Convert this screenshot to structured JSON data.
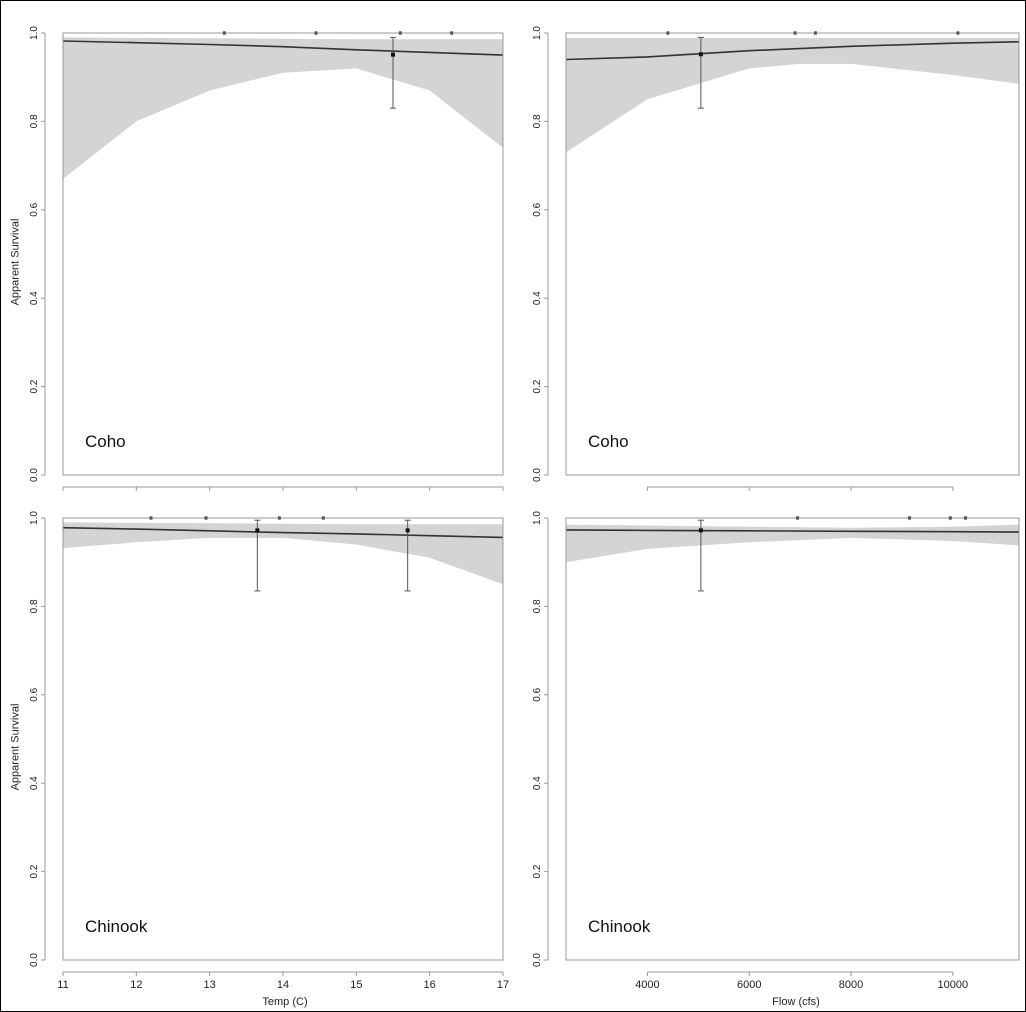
{
  "figure": {
    "ylabel_top": "Apparent Survival",
    "ylabel_bottom": "Apparent Survival",
    "xlabel_temp": "Temp (C)",
    "xlabel_flow": "Flow (cfs)"
  },
  "colors": {
    "band": "#d4d4d4",
    "line": "#333333",
    "axis": "#999999",
    "text": "#222222"
  },
  "chart_data": [
    {
      "id": "coho-temp",
      "type": "line",
      "species_label": "Coho",
      "xlim": [
        11,
        17
      ],
      "ylim": [
        0,
        1
      ],
      "xticks": [
        11,
        12,
        13,
        14,
        15,
        16,
        17
      ],
      "show_xtick_labels": false,
      "yticks": [
        0.0,
        0.2,
        0.4,
        0.6,
        0.8,
        1.0
      ],
      "series": [
        {
          "x": [
            11,
            12,
            13,
            14,
            15,
            16,
            17
          ],
          "fit": [
            0.982,
            0.978,
            0.974,
            0.969,
            0.962,
            0.956,
            0.95
          ]
        },
        {
          "x": [
            11,
            12,
            13,
            14,
            15,
            16,
            17
          ],
          "lower": [
            0.67,
            0.8,
            0.87,
            0.91,
            0.92,
            0.87,
            0.74
          ],
          "upper": [
            0.99,
            0.989,
            0.988,
            0.987,
            0.986,
            0.986,
            0.986
          ]
        },
        {
          "x": [
            13.2,
            14.45,
            15.6,
            16.3
          ],
          "y": [
            1.0,
            1.0,
            1.0,
            1.0
          ]
        },
        {
          "x": [
            15.5
          ],
          "y": [
            0.951
          ],
          "err_low": [
            0.83
          ],
          "err_high": [
            0.99
          ]
        }
      ]
    },
    {
      "id": "coho-flow",
      "type": "line",
      "species_label": "Coho",
      "xlim": [
        2400,
        11300
      ],
      "ylim": [
        0,
        1
      ],
      "xticks": [
        4000,
        6000,
        8000,
        10000
      ],
      "show_xtick_labels": false,
      "yticks": [
        0.0,
        0.2,
        0.4,
        0.6,
        0.8,
        1.0
      ],
      "series": [
        {
          "x": [
            2400,
            4000,
            6000,
            8000,
            10000,
            11300
          ],
          "fit": [
            0.94,
            0.946,
            0.96,
            0.97,
            0.977,
            0.98
          ]
        },
        {
          "x": [
            2400,
            4000,
            6000,
            7000,
            8000,
            10000,
            11300
          ],
          "lower": [
            0.73,
            0.85,
            0.92,
            0.93,
            0.93,
            0.905,
            0.885
          ],
          "upper": [
            0.989,
            0.989,
            0.989,
            0.989,
            0.989,
            0.989,
            0.989
          ]
        },
        {
          "x": [
            4400,
            6900,
            7300,
            10100
          ],
          "y": [
            1.0,
            1.0,
            1.0,
            1.0
          ]
        },
        {
          "x": [
            5050
          ],
          "y": [
            0.952
          ],
          "err_low": [
            0.83
          ],
          "err_high": [
            0.99
          ]
        }
      ]
    },
    {
      "id": "chinook-temp",
      "type": "line",
      "species_label": "Chinook",
      "xlim": [
        11,
        17
      ],
      "ylim": [
        0,
        1
      ],
      "xticks": [
        11,
        12,
        13,
        14,
        15,
        16,
        17
      ],
      "show_xtick_labels": true,
      "yticks": [
        0.0,
        0.2,
        0.4,
        0.6,
        0.8,
        1.0
      ],
      "series": [
        {
          "x": [
            11,
            12,
            13,
            14,
            15,
            16,
            17
          ],
          "fit": [
            0.978,
            0.975,
            0.971,
            0.967,
            0.964,
            0.96,
            0.956
          ]
        },
        {
          "x": [
            11,
            12,
            13,
            14,
            15,
            16,
            17
          ],
          "lower": [
            0.932,
            0.945,
            0.955,
            0.955,
            0.94,
            0.91,
            0.85
          ],
          "upper": [
            0.99,
            0.989,
            0.988,
            0.987,
            0.986,
            0.986,
            0.986
          ]
        },
        {
          "x": [
            12.2,
            12.95,
            13.95,
            14.55
          ],
          "y": [
            1.0,
            1.0,
            1.0,
            1.0
          ]
        },
        {
          "x": [
            13.65,
            15.7
          ],
          "y": [
            0.972,
            0.972
          ],
          "err_low": [
            0.835,
            0.835
          ],
          "err_high": [
            0.995,
            0.995
          ]
        }
      ]
    },
    {
      "id": "chinook-flow",
      "type": "line",
      "species_label": "Chinook",
      "xlim": [
        2400,
        11300
      ],
      "ylim": [
        0,
        1
      ],
      "xticks": [
        4000,
        6000,
        8000,
        10000
      ],
      "show_xtick_labels": true,
      "yticks": [
        0.0,
        0.2,
        0.4,
        0.6,
        0.8,
        1.0
      ],
      "series": [
        {
          "x": [
            2400,
            4000,
            6000,
            8000,
            10000,
            11300
          ],
          "fit": [
            0.973,
            0.972,
            0.971,
            0.97,
            0.969,
            0.968
          ]
        },
        {
          "x": [
            2400,
            4000,
            6000,
            8000,
            10000,
            11300
          ],
          "lower": [
            0.9,
            0.93,
            0.945,
            0.955,
            0.948,
            0.938
          ],
          "upper": [
            0.985,
            0.983,
            0.98,
            0.978,
            0.98,
            0.985
          ]
        },
        {
          "x": [
            6950,
            9150,
            9950,
            10250
          ],
          "y": [
            1.0,
            1.0,
            1.0,
            1.0
          ]
        },
        {
          "x": [
            5050
          ],
          "y": [
            0.972
          ],
          "err_low": [
            0.835
          ],
          "err_high": [
            0.995
          ]
        }
      ]
    }
  ]
}
